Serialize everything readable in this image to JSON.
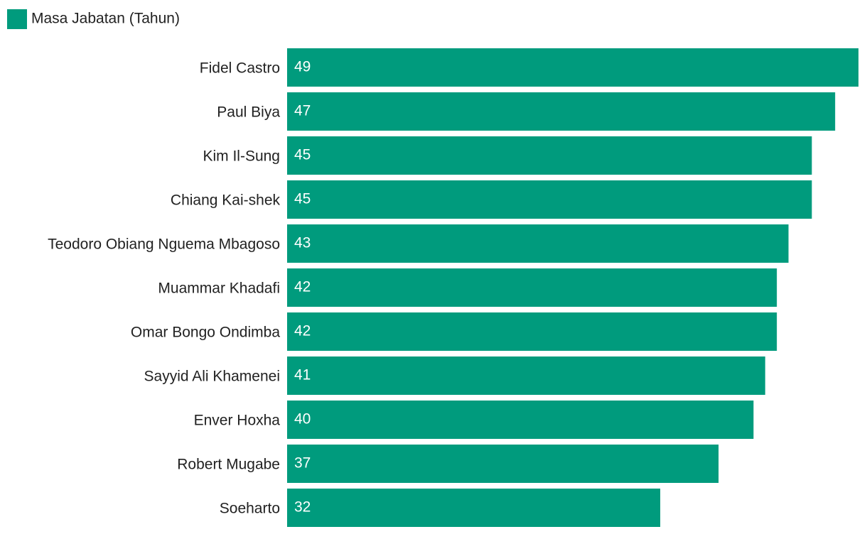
{
  "chart_data": {
    "type": "barh",
    "categories": [
      "Fidel Castro",
      "Paul Biya",
      "Kim Il-Sung",
      "Chiang Kai-shek",
      "Teodoro Obiang Nguema Mbagoso",
      "Muammar Khadafi",
      "Omar Bongo Ondimba",
      "Sayyid Ali Khamenei",
      "Enver Hoxha",
      "Robert Mugabe",
      "Soeharto"
    ],
    "series": [
      {
        "name": "Masa Jabatan (Tahun)",
        "color": "#009b7d",
        "values": [
          49,
          47,
          45,
          45,
          43,
          42,
          42,
          41,
          40,
          37,
          32
        ]
      }
    ],
    "xlim": [
      0,
      49
    ],
    "legend": "top-left"
  }
}
